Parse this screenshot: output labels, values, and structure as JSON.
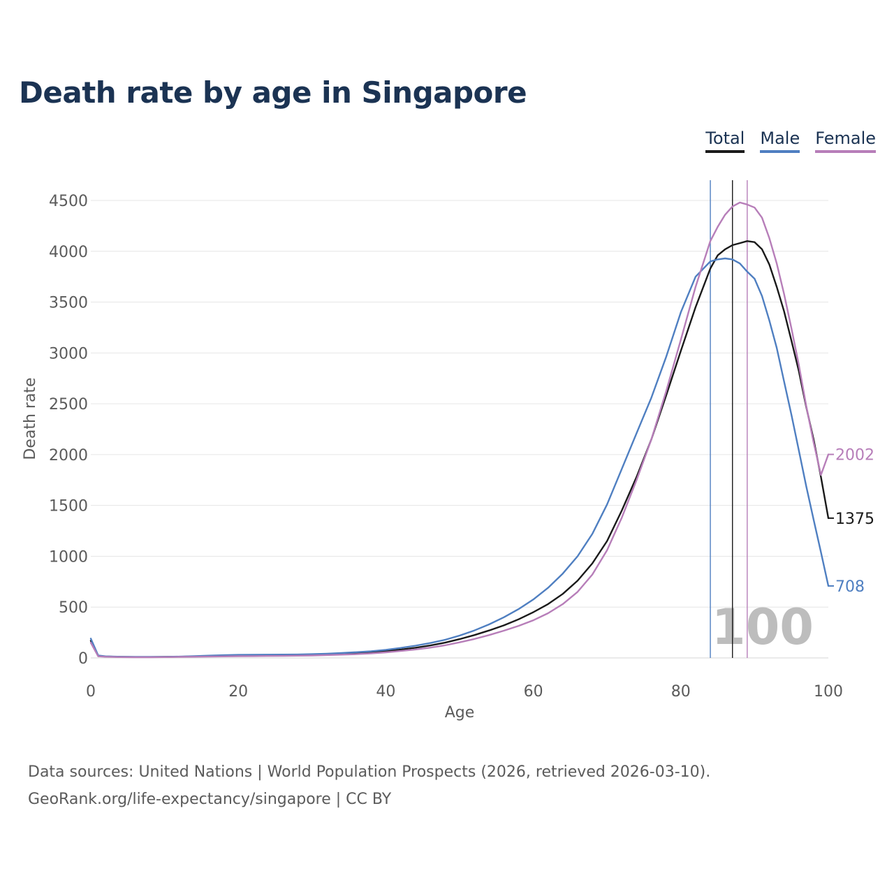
{
  "title": "Death rate by age in Singapore",
  "legend": [
    {
      "name": "Total",
      "color": "#1a1a1a"
    },
    {
      "name": "Male",
      "color": "#4f7fc1"
    },
    {
      "name": "Female",
      "color": "#b77eb9"
    }
  ],
  "footer": {
    "line1": "Data sources: United Nations | World Population Prospects (2026, retrieved 2026-03-10).",
    "line2": "GeoRank.org/life-expectancy/singapore | CC BY"
  },
  "chart_data": {
    "type": "line",
    "title": "Death rate by age in Singapore",
    "xlabel": "Age",
    "ylabel": "Death rate",
    "xlim": [
      0,
      100
    ],
    "ylim": [
      0,
      4500
    ],
    "xticks": [
      0,
      20,
      40,
      60,
      80,
      100
    ],
    "yticks": [
      0,
      500,
      1000,
      1500,
      2000,
      2500,
      3000,
      3500,
      4000,
      4500
    ],
    "grid": true,
    "legend_position": "top-right",
    "watermark": "100",
    "x": [
      0,
      1,
      2,
      4,
      6,
      8,
      10,
      12,
      14,
      16,
      18,
      20,
      22,
      24,
      26,
      28,
      30,
      32,
      34,
      36,
      38,
      40,
      42,
      44,
      46,
      48,
      50,
      52,
      54,
      56,
      58,
      60,
      62,
      64,
      66,
      68,
      70,
      72,
      74,
      76,
      78,
      80,
      82,
      84,
      85,
      86,
      87,
      88,
      89,
      90,
      91,
      92,
      93,
      94,
      95,
      96,
      97,
      98,
      99,
      100
    ],
    "series": [
      {
        "name": "Total",
        "color": "#1a1a1a",
        "end_label": "1375",
        "marker_age": 87,
        "values": [
          170,
          20,
          14,
          10,
          9,
          9,
          10,
          12,
          15,
          18,
          21,
          24,
          25,
          26,
          27,
          28,
          31,
          35,
          40,
          46,
          55,
          67,
          82,
          100,
          122,
          150,
          185,
          225,
          270,
          320,
          380,
          450,
          530,
          630,
          760,
          930,
          1150,
          1450,
          1780,
          2150,
          2580,
          3020,
          3450,
          3830,
          3960,
          4020,
          4060,
          4080,
          4100,
          4090,
          4020,
          3870,
          3650,
          3410,
          3120,
          2820,
          2470,
          2150,
          1780,
          1375
        ]
      },
      {
        "name": "Male",
        "color": "#4f7fc1",
        "end_label": "708",
        "marker_age": 84,
        "values": [
          190,
          24,
          16,
          12,
          10,
          10,
          11,
          13,
          18,
          23,
          27,
          30,
          31,
          32,
          33,
          34,
          37,
          42,
          48,
          56,
          66,
          80,
          98,
          120,
          146,
          178,
          220,
          270,
          330,
          400,
          480,
          575,
          690,
          830,
          1000,
          1220,
          1510,
          1860,
          2210,
          2560,
          2960,
          3400,
          3750,
          3900,
          3920,
          3930,
          3920,
          3880,
          3800,
          3730,
          3560,
          3320,
          3050,
          2720,
          2390,
          2040,
          1690,
          1360,
          1040,
          708
        ]
      },
      {
        "name": "Female",
        "color": "#b77eb9",
        "end_label": "2002",
        "marker_age": 89,
        "values": [
          150,
          16,
          12,
          8,
          7,
          7,
          8,
          10,
          12,
          13,
          15,
          17,
          18,
          19,
          20,
          22,
          24,
          28,
          32,
          37,
          45,
          55,
          68,
          83,
          101,
          124,
          153,
          186,
          225,
          268,
          315,
          370,
          440,
          530,
          650,
          820,
          1060,
          1380,
          1750,
          2150,
          2620,
          3130,
          3650,
          4100,
          4240,
          4360,
          4440,
          4480,
          4460,
          4430,
          4330,
          4130,
          3880,
          3580,
          3240,
          2880,
          2480,
          2120,
          1800,
          2002
        ]
      }
    ]
  }
}
